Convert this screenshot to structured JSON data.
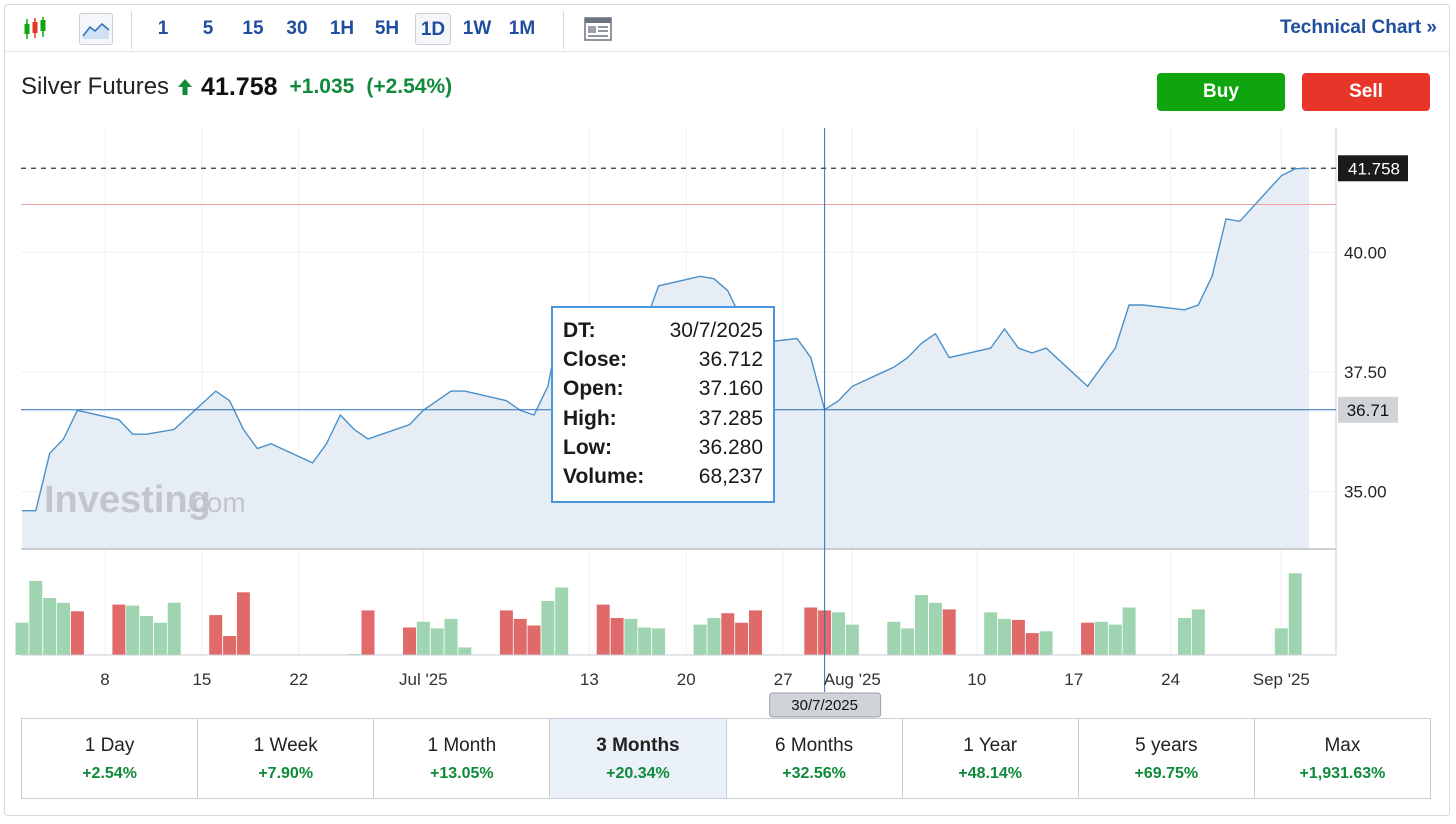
{
  "toolbar": {
    "timeframes": [
      "1",
      "5",
      "15",
      "30",
      "1H",
      "5H",
      "1D",
      "1W",
      "1M"
    ],
    "active_timeframe": "1D",
    "technical_link": "Technical Chart »"
  },
  "instrument": {
    "name": "Silver Futures",
    "price": "41.758",
    "change": "+1.035",
    "change_pct": "(+2.54%)"
  },
  "actions": {
    "buy": "Buy",
    "sell": "Sell"
  },
  "watermark": {
    "brand": "Investing",
    "suffix": ".com"
  },
  "tooltip": {
    "rows": [
      {
        "k": "DT:",
        "v": "30/7/2025"
      },
      {
        "k": "Close:",
        "v": "36.712"
      },
      {
        "k": "Open:",
        "v": "37.160"
      },
      {
        "k": "High:",
        "v": "37.285"
      },
      {
        "k": "Low:",
        "v": "36.280"
      },
      {
        "k": "Volume:",
        "v": "68,237"
      }
    ]
  },
  "crosshair_date": "30/7/2025",
  "last_price_label": "41.758",
  "crosshair_price_label": "36.71",
  "periods": [
    {
      "label": "1 Day",
      "value": "+2.54%"
    },
    {
      "label": "1 Week",
      "value": "+7.90%"
    },
    {
      "label": "1 Month",
      "value": "+13.05%"
    },
    {
      "label": "3 Months",
      "value": "+20.34%"
    },
    {
      "label": "6 Months",
      "value": "+32.56%"
    },
    {
      "label": "1 Year",
      "value": "+48.14%"
    },
    {
      "label": "5 years",
      "value": "+69.75%"
    },
    {
      "label": "Max",
      "value": "+1,931.63%"
    }
  ],
  "active_period": "3 Months",
  "colors": {
    "line": "#4a90c8",
    "area": "#e6edf5",
    "up": "#9fd4b0",
    "down": "#e06a6a",
    "crosshair": "#2a6fc0",
    "reference_line": "#f0a0a0"
  },
  "chart_data": {
    "type": "area",
    "y_ticks": [
      "35.00",
      "37.50",
      "40.00"
    ],
    "ylim": [
      33.8,
      42.6
    ],
    "reference_level": 41.0,
    "x_tick_labels": [
      "8",
      "15",
      "22",
      "Jul '25",
      "13",
      "20",
      "27",
      "Aug '25",
      "10",
      "17",
      "24",
      "Sep '25"
    ],
    "x_tick_dates": [
      "2025-06-08",
      "2025-06-15",
      "2025-06-22",
      "2025-07-01",
      "2025-07-13",
      "2025-07-20",
      "2025-07-27",
      "2025-08-01",
      "2025-08-10",
      "2025-08-17",
      "2025-08-24",
      "2025-09-01"
    ],
    "crosshair_date": "2025-07-30",
    "series": [
      {
        "x": [
          "2025-06-02",
          "2025-06-03",
          "2025-06-04",
          "2025-06-05",
          "2025-06-06",
          "2025-06-09",
          "2025-06-10",
          "2025-06-11",
          "2025-06-12",
          "2025-06-13",
          "2025-06-16",
          "2025-06-17",
          "2025-06-18",
          "2025-06-19",
          "2025-06-20",
          "2025-06-23",
          "2025-06-24",
          "2025-06-25",
          "2025-06-26",
          "2025-06-27",
          "2025-06-30",
          "2025-07-01",
          "2025-07-02",
          "2025-07-03",
          "2025-07-04",
          "2025-07-07",
          "2025-07-08",
          "2025-07-09",
          "2025-07-10",
          "2025-07-11",
          "2025-07-14",
          "2025-07-15",
          "2025-07-16",
          "2025-07-17",
          "2025-07-18",
          "2025-07-21",
          "2025-07-22",
          "2025-07-23",
          "2025-07-24",
          "2025-07-25",
          "2025-07-28",
          "2025-07-29",
          "2025-07-30",
          "2025-07-31",
          "2025-08-01",
          "2025-08-04",
          "2025-08-05",
          "2025-08-06",
          "2025-08-07",
          "2025-08-08",
          "2025-08-11",
          "2025-08-12",
          "2025-08-13",
          "2025-08-14",
          "2025-08-15",
          "2025-08-18",
          "2025-08-19",
          "2025-08-20",
          "2025-08-21",
          "2025-08-22",
          "2025-08-25",
          "2025-08-26",
          "2025-08-27",
          "2025-08-28",
          "2025-08-29",
          "2025-09-01",
          "2025-09-02",
          "2025-09-03"
        ],
        "values": [
          34.6,
          34.6,
          35.8,
          36.1,
          36.7,
          36.5,
          36.2,
          36.2,
          36.25,
          36.3,
          37.1,
          36.9,
          36.3,
          35.9,
          36.0,
          35.6,
          36.0,
          36.6,
          36.3,
          36.1,
          36.4,
          36.7,
          36.9,
          37.1,
          37.1,
          36.9,
          36.7,
          36.6,
          37.2,
          38.7,
          38.5,
          38.2,
          38.3,
          38.5,
          39.3,
          39.5,
          39.45,
          39.2,
          38.6,
          38.1,
          38.2,
          37.8,
          36.712,
          36.9,
          37.2,
          37.6,
          37.8,
          38.1,
          38.3,
          37.8,
          38.0,
          38.4,
          38.0,
          37.9,
          38.0,
          37.2,
          37.6,
          38.0,
          38.9,
          38.9,
          38.8,
          38.9,
          39.5,
          40.7,
          40.65,
          41.6,
          41.75,
          41.758
        ]
      }
    ],
    "volume": [
      {
        "x": "2025-06-02",
        "dir": "up",
        "v": 0.34
      },
      {
        "x": "2025-06-03",
        "dir": "up",
        "v": 0.78
      },
      {
        "x": "2025-06-04",
        "dir": "up",
        "v": 0.6
      },
      {
        "x": "2025-06-05",
        "dir": "up",
        "v": 0.55
      },
      {
        "x": "2025-06-06",
        "dir": "down",
        "v": 0.46
      },
      {
        "x": "2025-06-09",
        "dir": "down",
        "v": 0.53
      },
      {
        "x": "2025-06-10",
        "dir": "up",
        "v": 0.52
      },
      {
        "x": "2025-06-11",
        "dir": "up",
        "v": 0.41
      },
      {
        "x": "2025-06-12",
        "dir": "up",
        "v": 0.34
      },
      {
        "x": "2025-06-13",
        "dir": "up",
        "v": 0.55
      },
      {
        "x": "2025-06-16",
        "dir": "down",
        "v": 0.42
      },
      {
        "x": "2025-06-17",
        "dir": "down",
        "v": 0.2
      },
      {
        "x": "2025-06-18",
        "dir": "down",
        "v": 0.66
      },
      {
        "x": "2025-06-26",
        "dir": "up",
        "v": 0.01
      },
      {
        "x": "2025-06-27",
        "dir": "down",
        "v": 0.47
      },
      {
        "x": "2025-06-30",
        "dir": "down",
        "v": 0.29
      },
      {
        "x": "2025-07-01",
        "dir": "up",
        "v": 0.35
      },
      {
        "x": "2025-07-02",
        "dir": "up",
        "v": 0.28
      },
      {
        "x": "2025-07-03",
        "dir": "up",
        "v": 0.38
      },
      {
        "x": "2025-07-04",
        "dir": "up",
        "v": 0.08
      },
      {
        "x": "2025-07-07",
        "dir": "down",
        "v": 0.47
      },
      {
        "x": "2025-07-08",
        "dir": "down",
        "v": 0.38
      },
      {
        "x": "2025-07-09",
        "dir": "down",
        "v": 0.31
      },
      {
        "x": "2025-07-10",
        "dir": "up",
        "v": 0.57
      },
      {
        "x": "2025-07-11",
        "dir": "up",
        "v": 0.71
      },
      {
        "x": "2025-07-14",
        "dir": "down",
        "v": 0.53
      },
      {
        "x": "2025-07-15",
        "dir": "down",
        "v": 0.39
      },
      {
        "x": "2025-07-16",
        "dir": "up",
        "v": 0.38
      },
      {
        "x": "2025-07-17",
        "dir": "up",
        "v": 0.29
      },
      {
        "x": "2025-07-18",
        "dir": "up",
        "v": 0.28
      },
      {
        "x": "2025-07-21",
        "dir": "up",
        "v": 0.32
      },
      {
        "x": "2025-07-22",
        "dir": "up",
        "v": 0.39
      },
      {
        "x": "2025-07-23",
        "dir": "down",
        "v": 0.44
      },
      {
        "x": "2025-07-24",
        "dir": "down",
        "v": 0.34
      },
      {
        "x": "2025-07-25",
        "dir": "down",
        "v": 0.47
      },
      {
        "x": "2025-07-29",
        "dir": "down",
        "v": 0.5
      },
      {
        "x": "2025-07-30",
        "dir": "down",
        "v": 0.47
      },
      {
        "x": "2025-07-31",
        "dir": "up",
        "v": 0.45
      },
      {
        "x": "2025-08-01",
        "dir": "up",
        "v": 0.32
      },
      {
        "x": "2025-08-04",
        "dir": "up",
        "v": 0.35
      },
      {
        "x": "2025-08-05",
        "dir": "up",
        "v": 0.28
      },
      {
        "x": "2025-08-06",
        "dir": "up",
        "v": 0.63
      },
      {
        "x": "2025-08-07",
        "dir": "up",
        "v": 0.55
      },
      {
        "x": "2025-08-08",
        "dir": "down",
        "v": 0.48
      },
      {
        "x": "2025-08-11",
        "dir": "up",
        "v": 0.45
      },
      {
        "x": "2025-08-12",
        "dir": "up",
        "v": 0.38
      },
      {
        "x": "2025-08-13",
        "dir": "down",
        "v": 0.37
      },
      {
        "x": "2025-08-14",
        "dir": "down",
        "v": 0.23
      },
      {
        "x": "2025-08-15",
        "dir": "up",
        "v": 0.25
      },
      {
        "x": "2025-08-18",
        "dir": "down",
        "v": 0.34
      },
      {
        "x": "2025-08-19",
        "dir": "up",
        "v": 0.35
      },
      {
        "x": "2025-08-20",
        "dir": "up",
        "v": 0.32
      },
      {
        "x": "2025-08-21",
        "dir": "up",
        "v": 0.5
      },
      {
        "x": "2025-08-25",
        "dir": "up",
        "v": 0.39
      },
      {
        "x": "2025-08-26",
        "dir": "up",
        "v": 0.48
      },
      {
        "x": "2025-09-01",
        "dir": "up",
        "v": 0.28
      },
      {
        "x": "2025-09-02",
        "dir": "up",
        "v": 0.86
      }
    ]
  }
}
